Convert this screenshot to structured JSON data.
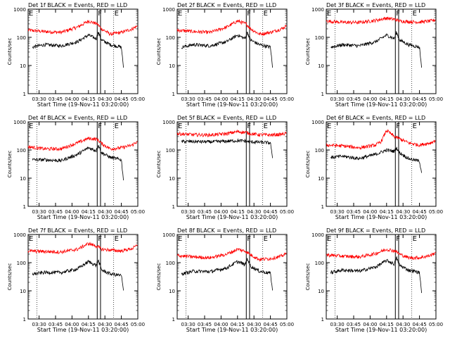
{
  "title_suffix": "BLACK = Events, RED = LLD",
  "xlabel": "Start Time (19-Nov-11 03:20:00)",
  "ylabel": "Counts/sec",
  "colors": {
    "events": "#000000",
    "lld": "#ff0000"
  },
  "chart_data": [
    {
      "type": "line",
      "title": "Det 1f BLACK = Events, RED = LLD",
      "scale": "log",
      "xticks": [
        "03:30",
        "03:45",
        "04:00",
        "04:15",
        "04:30",
        "04:45",
        "05:00"
      ],
      "yticks": [
        "1",
        "10",
        "100",
        "1000"
      ],
      "ylim": [
        1,
        1000
      ],
      "series": [
        {
          "color": "red",
          "x": [
            "03:20",
            "03:35",
            "03:50",
            "04:05",
            "04:15",
            "04:23",
            "04:27",
            "04:35",
            "04:45",
            "04:55",
            "05:00"
          ],
          "values": [
            180,
            160,
            150,
            230,
            380,
            300,
            200,
            130,
            150,
            200,
            260
          ]
        },
        {
          "color": "black",
          "x": [
            "03:24",
            "03:35",
            "03:50",
            "04:05",
            "04:15",
            "04:22",
            "04:24",
            "04:27",
            "04:35",
            "04:45",
            "04:47"
          ],
          "values": [
            45,
            55,
            50,
            70,
            120,
            90,
            150,
            80,
            55,
            45,
            8
          ]
        }
      ]
    },
    {
      "type": "line",
      "title": "Det 2f BLACK = Events, RED = LLD",
      "scale": "log",
      "xticks": [
        "03:30",
        "03:45",
        "04:00",
        "04:15",
        "04:30",
        "04:45",
        "05:00"
      ],
      "yticks": [
        "1",
        "10",
        "100",
        "1000"
      ],
      "ylim": [
        1,
        1000
      ],
      "series": [
        {
          "color": "red",
          "x": [
            "03:20",
            "03:35",
            "03:50",
            "04:05",
            "04:15",
            "04:23",
            "04:27",
            "04:35",
            "04:45",
            "04:55",
            "05:00"
          ],
          "values": [
            180,
            160,
            150,
            230,
            380,
            300,
            200,
            130,
            150,
            200,
            260
          ]
        },
        {
          "color": "black",
          "x": [
            "03:24",
            "03:35",
            "03:50",
            "04:05",
            "04:15",
            "04:22",
            "04:24",
            "04:27",
            "04:35",
            "04:45",
            "04:47"
          ],
          "values": [
            45,
            55,
            50,
            70,
            120,
            90,
            150,
            80,
            55,
            45,
            8
          ]
        }
      ]
    },
    {
      "type": "line",
      "title": "Det 3f BLACK = Events, RED = LLD",
      "scale": "log",
      "xticks": [
        "03:30",
        "03:45",
        "04:00",
        "04:15",
        "04:30",
        "04:45",
        "05:00"
      ],
      "yticks": [
        "1",
        "10",
        "100",
        "1000"
      ],
      "ylim": [
        1,
        1000
      ],
      "series": [
        {
          "color": "red",
          "x": [
            "03:20",
            "03:35",
            "03:50",
            "04:05",
            "04:15",
            "04:23",
            "04:27",
            "04:35",
            "04:45",
            "04:55",
            "05:00"
          ],
          "values": [
            380,
            340,
            340,
            400,
            480,
            430,
            380,
            360,
            350,
            380,
            420
          ]
        },
        {
          "color": "black",
          "x": [
            "03:24",
            "03:35",
            "03:50",
            "04:05",
            "04:15",
            "04:22",
            "04:24",
            "04:27",
            "04:35",
            "04:45",
            "04:47"
          ],
          "values": [
            45,
            55,
            50,
            70,
            120,
            90,
            150,
            80,
            55,
            45,
            8
          ]
        }
      ]
    },
    {
      "type": "line",
      "title": "Det 4f BLACK = Events, RED = LLD",
      "scale": "log",
      "xticks": [
        "03:30",
        "03:45",
        "04:00",
        "04:15",
        "04:30",
        "04:45",
        "05:00"
      ],
      "yticks": [
        "1",
        "10",
        "100",
        "1000"
      ],
      "ylim": [
        1,
        1000
      ],
      "series": [
        {
          "color": "red",
          "x": [
            "03:20",
            "03:35",
            "03:50",
            "04:05",
            "04:15",
            "04:23",
            "04:27",
            "04:35",
            "04:45",
            "04:55",
            "05:00"
          ],
          "values": [
            130,
            110,
            110,
            180,
            260,
            240,
            170,
            110,
            120,
            150,
            210
          ]
        },
        {
          "color": "black",
          "x": [
            "03:24",
            "03:35",
            "03:50",
            "04:05",
            "04:15",
            "04:22",
            "04:24",
            "04:27",
            "04:35",
            "04:45",
            "04:47"
          ],
          "values": [
            45,
            45,
            42,
            70,
            120,
            95,
            150,
            80,
            55,
            45,
            8
          ]
        }
      ]
    },
    {
      "type": "line",
      "title": "Det 5f BLACK = Events, RED = LLD",
      "scale": "log",
      "xticks": [
        "03:30",
        "03:45",
        "04:00",
        "04:15",
        "04:30",
        "04:45",
        "05:00"
      ],
      "yticks": [
        "1",
        "10",
        "100",
        "1000"
      ],
      "ylim": [
        1,
        1000
      ],
      "series": [
        {
          "color": "red",
          "x": [
            "03:20",
            "03:35",
            "03:50",
            "04:05",
            "04:15",
            "04:23",
            "04:27",
            "04:35",
            "04:45",
            "04:55",
            "05:00"
          ],
          "values": [
            380,
            350,
            340,
            380,
            450,
            420,
            380,
            350,
            340,
            360,
            400
          ]
        },
        {
          "color": "black",
          "x": [
            "03:24",
            "03:35",
            "03:50",
            "04:05",
            "04:15",
            "04:22",
            "04:24",
            "04:27",
            "04:35",
            "04:45",
            "04:47"
          ],
          "values": [
            200,
            200,
            195,
            205,
            215,
            210,
            200,
            195,
            190,
            180,
            50
          ]
        }
      ]
    },
    {
      "type": "line",
      "title": "Det 6f BLACK = Events, RED = LLD",
      "scale": "log",
      "xticks": [
        "03:30",
        "03:45",
        "04:00",
        "04:15",
        "04:30",
        "04:45",
        "05:00"
      ],
      "yticks": [
        "1",
        "10",
        "100",
        "1000"
      ],
      "ylim": [
        1,
        1000
      ],
      "series": [
        {
          "color": "red",
          "x": [
            "03:20",
            "03:35",
            "03:50",
            "04:05",
            "04:10",
            "04:15",
            "04:22",
            "04:27",
            "04:35",
            "04:45",
            "04:55",
            "05:00"
          ],
          "values": [
            150,
            140,
            120,
            150,
            200,
            500,
            300,
            250,
            180,
            150,
            180,
            220
          ]
        },
        {
          "color": "black",
          "x": [
            "03:24",
            "03:35",
            "03:50",
            "04:05",
            "04:15",
            "04:22",
            "04:24",
            "04:27",
            "04:35",
            "04:45",
            "04:47"
          ],
          "values": [
            55,
            60,
            50,
            70,
            100,
            90,
            120,
            80,
            50,
            40,
            15
          ]
        }
      ]
    },
    {
      "type": "line",
      "title": "Det 7f BLACK = Events, RED = LLD",
      "scale": "log",
      "xticks": [
        "03:30",
        "03:45",
        "04:00",
        "04:15",
        "04:30",
        "04:45",
        "05:00"
      ],
      "yticks": [
        "1",
        "10",
        "100",
        "1000"
      ],
      "ylim": [
        1,
        1000
      ],
      "series": [
        {
          "color": "red",
          "x": [
            "03:20",
            "03:35",
            "03:50",
            "04:05",
            "04:15",
            "04:23",
            "04:27",
            "04:35",
            "04:45",
            "04:55",
            "05:00"
          ],
          "values": [
            260,
            250,
            240,
            300,
            480,
            380,
            300,
            280,
            260,
            320,
            420
          ]
        },
        {
          "color": "black",
          "x": [
            "03:24",
            "03:35",
            "03:50",
            "04:05",
            "04:15",
            "04:22",
            "04:24",
            "04:27",
            "04:35",
            "04:45",
            "04:47"
          ],
          "values": [
            40,
            45,
            45,
            60,
            110,
            80,
            120,
            55,
            40,
            35,
            10
          ]
        }
      ]
    },
    {
      "type": "line",
      "title": "Det 8f BLACK = Events, RED = LLD",
      "scale": "log",
      "xticks": [
        "03:30",
        "03:45",
        "04:00",
        "04:15",
        "04:30",
        "04:45",
        "05:00"
      ],
      "yticks": [
        "1",
        "10",
        "100",
        "1000"
      ],
      "ylim": [
        1,
        1000
      ],
      "series": [
        {
          "color": "red",
          "x": [
            "03:20",
            "03:35",
            "03:50",
            "04:05",
            "04:15",
            "04:23",
            "04:27",
            "04:35",
            "04:45",
            "04:55",
            "05:00"
          ],
          "values": [
            180,
            160,
            150,
            200,
            300,
            250,
            190,
            130,
            140,
            170,
            220
          ]
        },
        {
          "color": "black",
          "x": [
            "03:24",
            "03:35",
            "03:50",
            "04:05",
            "04:15",
            "04:22",
            "04:24",
            "04:27",
            "04:35",
            "04:45",
            "04:47"
          ],
          "values": [
            40,
            50,
            48,
            65,
            110,
            85,
            140,
            75,
            50,
            42,
            10
          ]
        }
      ]
    },
    {
      "type": "line",
      "title": "Det 9f BLACK = Events, RED = LLD",
      "scale": "log",
      "xticks": [
        "03:30",
        "03:45",
        "04:00",
        "04:15",
        "04:30",
        "04:45",
        "05:00"
      ],
      "yticks": [
        "1",
        "10",
        "100",
        "1000"
      ],
      "ylim": [
        1,
        1000
      ],
      "series": [
        {
          "color": "red",
          "x": [
            "03:20",
            "03:35",
            "03:50",
            "04:05",
            "04:15",
            "04:23",
            "04:27",
            "04:35",
            "04:45",
            "04:55",
            "05:00"
          ],
          "values": [
            190,
            170,
            160,
            210,
            300,
            260,
            200,
            150,
            150,
            180,
            240
          ]
        },
        {
          "color": "black",
          "x": [
            "03:24",
            "03:35",
            "03:50",
            "04:05",
            "04:15",
            "04:22",
            "04:24",
            "04:27",
            "04:35",
            "04:45",
            "04:47"
          ],
          "values": [
            45,
            55,
            50,
            70,
            120,
            90,
            150,
            80,
            55,
            45,
            8
          ]
        }
      ]
    }
  ]
}
